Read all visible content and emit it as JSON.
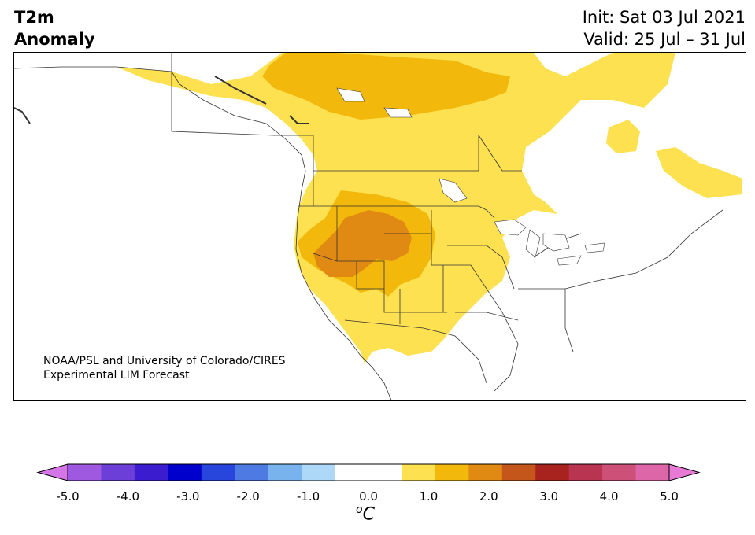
{
  "header": {
    "title_line1": "T2m",
    "title_line2": "Anomaly",
    "init": "Init: Sat 03 Jul 2021",
    "valid": "Valid: 25 Jul – 31 Jul"
  },
  "credit": {
    "line1": "NOAA/PSL and University of Colorado/CIRES",
    "line2": "Experimental LIM Forecast"
  },
  "colorbar": {
    "colors": [
      "#d476e8",
      "#9e59e0",
      "#6b3fd8",
      "#3b1ccf",
      "#0000cd",
      "#2846dc",
      "#4d7ae3",
      "#78b3ee",
      "#aed8f7",
      "#ffffff",
      "#ffffff",
      "#fde150",
      "#f2b90c",
      "#e08a14",
      "#c4561c",
      "#a9231e",
      "#b93450",
      "#cd5078",
      "#dd66a8",
      "#e87ad6"
    ],
    "ticks": [
      "-5.0",
      "-4.0",
      "-3.0",
      "-2.0",
      "-1.0",
      "0.0",
      "1.0",
      "2.0",
      "3.0",
      "4.0",
      "5.0"
    ],
    "unit_base": "C",
    "unit_sup": "o"
  },
  "legend_colors": {
    "anom_1": "#fde150",
    "anom_2": "#f2b90c",
    "anom_3": "#e08a14"
  }
}
